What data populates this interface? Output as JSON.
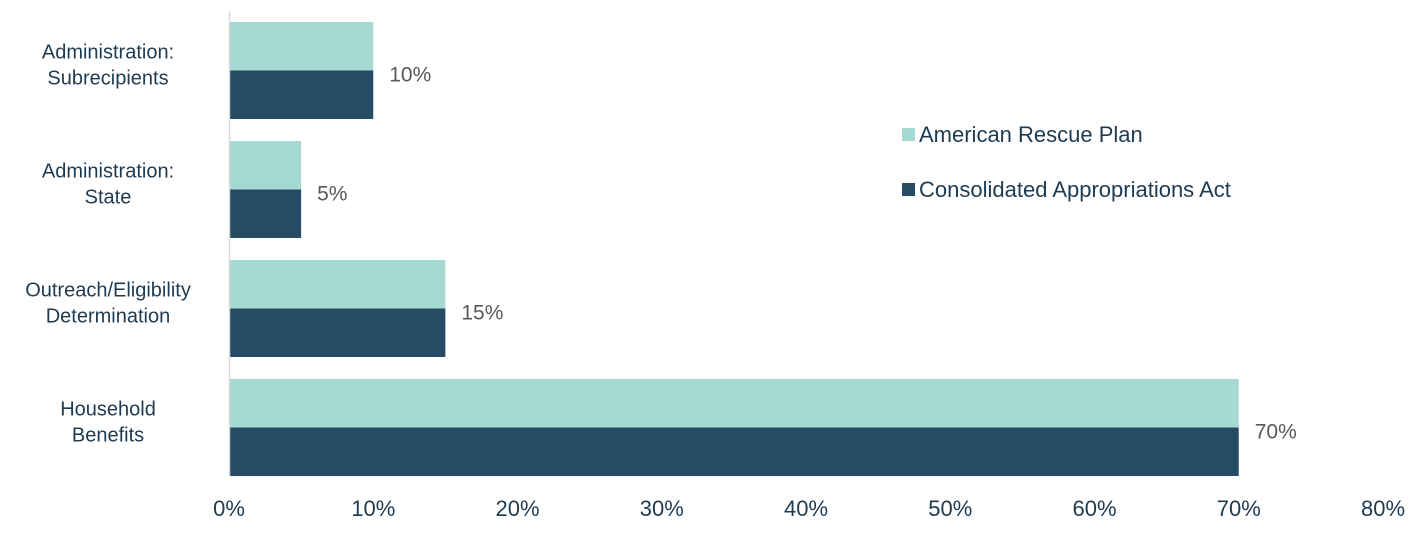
{
  "chart_data": {
    "type": "bar",
    "orientation": "horizontal",
    "title": "",
    "xlabel": "",
    "ylabel": "",
    "categories": [
      [
        "Administration:",
        "Subrecipients"
      ],
      [
        "Administration:",
        "State"
      ],
      [
        "Outreach/Eligibility",
        "Determination"
      ],
      [
        "Household",
        "Benefits"
      ]
    ],
    "series": [
      {
        "name": "American Rescue Plan",
        "color": "#a6d9d2",
        "values": [
          10,
          5,
          15,
          70
        ]
      },
      {
        "name": "Consolidated Appropriations Act",
        "color": "#264b64",
        "values": [
          10,
          5,
          15,
          70
        ]
      }
    ],
    "data_labels": [
      "10%",
      "5%",
      "15%",
      "70%"
    ],
    "xlim": [
      0,
      80
    ],
    "x_ticks": [
      0,
      10,
      20,
      30,
      40,
      50,
      60,
      70,
      80
    ],
    "x_tick_labels": [
      "0%",
      "10%",
      "20%",
      "30%",
      "40%",
      "50%",
      "60%",
      "70%",
      "80%"
    ],
    "grid": false,
    "legend_position": "right"
  }
}
